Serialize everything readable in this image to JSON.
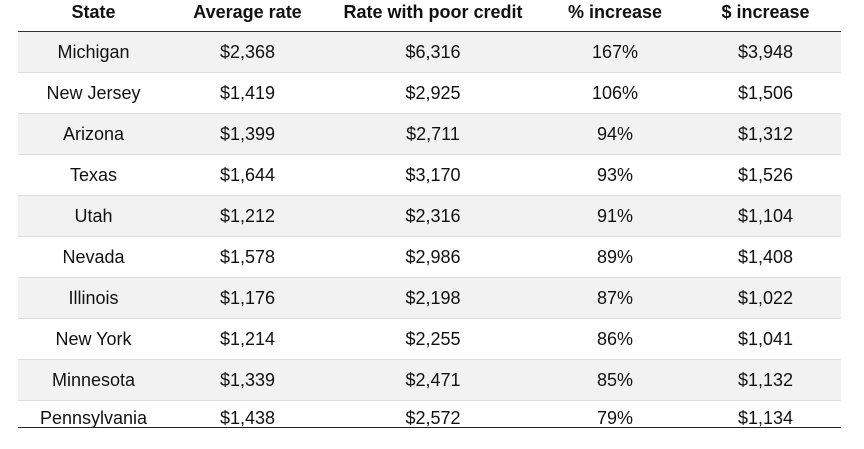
{
  "table": {
    "headers": {
      "state": "State",
      "average_rate": "Average rate",
      "rate_poor_credit": "Rate with poor credit",
      "pct_increase": "% increase",
      "dollar_increase": "$ increase"
    },
    "rows": [
      {
        "state": "Michigan",
        "average_rate": "$2,368",
        "rate_poor_credit": "$6,316",
        "pct_increase": "167%",
        "dollar_increase": "$3,948"
      },
      {
        "state": "New Jersey",
        "average_rate": "$1,419",
        "rate_poor_credit": "$2,925",
        "pct_increase": "106%",
        "dollar_increase": "$1,506"
      },
      {
        "state": "Arizona",
        "average_rate": "$1,399",
        "rate_poor_credit": "$2,711",
        "pct_increase": "94%",
        "dollar_increase": "$1,312"
      },
      {
        "state": "Texas",
        "average_rate": "$1,644",
        "rate_poor_credit": "$3,170",
        "pct_increase": "93%",
        "dollar_increase": "$1,526"
      },
      {
        "state": "Utah",
        "average_rate": "$1,212",
        "rate_poor_credit": "$2,316",
        "pct_increase": "91%",
        "dollar_increase": "$1,104"
      },
      {
        "state": "Nevada",
        "average_rate": "$1,578",
        "rate_poor_credit": "$2,986",
        "pct_increase": "89%",
        "dollar_increase": "$1,408"
      },
      {
        "state": "Illinois",
        "average_rate": "$1,176",
        "rate_poor_credit": "$2,198",
        "pct_increase": "87%",
        "dollar_increase": "$1,022"
      },
      {
        "state": "New York",
        "average_rate": "$1,214",
        "rate_poor_credit": "$2,255",
        "pct_increase": "86%",
        "dollar_increase": "$1,041"
      },
      {
        "state": "Minnesota",
        "average_rate": "$1,339",
        "rate_poor_credit": "$2,471",
        "pct_increase": "85%",
        "dollar_increase": "$1,132"
      },
      {
        "state": "Pennsylvania",
        "average_rate": "$1,438",
        "rate_poor_credit": "$2,572",
        "pct_increase": "79%",
        "dollar_increase": "$1,134"
      }
    ]
  },
  "colors": {
    "stripe": "#f2f2f2",
    "header_rule": "#333333",
    "row_rule": "#dddddd",
    "text": "#111111"
  }
}
